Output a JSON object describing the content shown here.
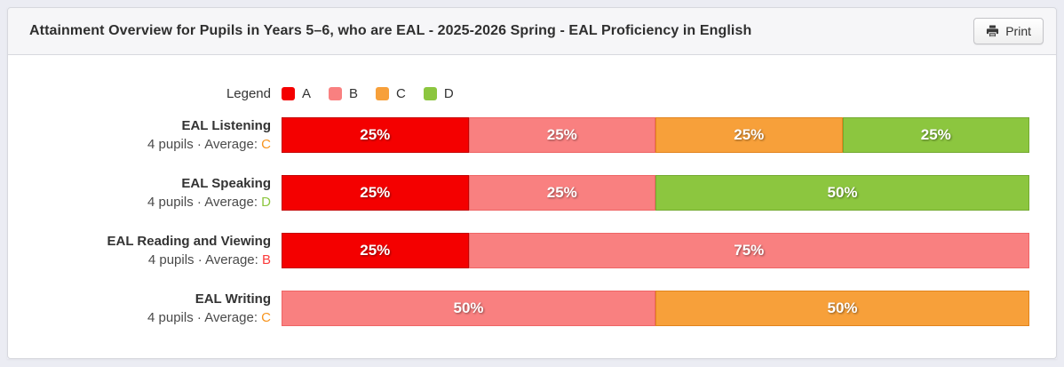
{
  "header": {
    "title": "Attainment Overview for Pupils in Years 5–6, who are EAL - 2025-2026 Spring - EAL Proficiency in English",
    "print_button": "Print"
  },
  "legend": {
    "label": "Legend",
    "items": [
      {
        "grade": "A",
        "color": "#f40000"
      },
      {
        "grade": "B",
        "color": "#f98080"
      },
      {
        "grade": "C",
        "color": "#f7a03a"
      },
      {
        "grade": "D",
        "color": "#8cc63f"
      }
    ]
  },
  "grade_colors": {
    "A": "#f40000",
    "B": "#f98080",
    "C": "#f7a03a",
    "D": "#8cc63f"
  },
  "grade_borders": {
    "A": "#c40202",
    "B": "#ee6565",
    "C": "#e2831c",
    "D": "#74aa31"
  },
  "average_letter_colors": {
    "A": "#f40000",
    "B": "#fb3b3b",
    "C": "#f7941e",
    "D": "#8cc63f"
  },
  "rows": [
    {
      "label": "EAL Listening",
      "meta_prefix": "4 pupils · Average: ",
      "average": "C",
      "segments": [
        {
          "grade": "A",
          "percent": 25,
          "text": "25%"
        },
        {
          "grade": "B",
          "percent": 25,
          "text": "25%"
        },
        {
          "grade": "C",
          "percent": 25,
          "text": "25%"
        },
        {
          "grade": "D",
          "percent": 25,
          "text": "25%"
        }
      ]
    },
    {
      "label": "EAL Speaking",
      "meta_prefix": "4 pupils · Average: ",
      "average": "D",
      "segments": [
        {
          "grade": "A",
          "percent": 25,
          "text": "25%"
        },
        {
          "grade": "B",
          "percent": 25,
          "text": "25%"
        },
        {
          "grade": "D",
          "percent": 50,
          "text": "50%"
        }
      ]
    },
    {
      "label": "EAL Reading and Viewing",
      "meta_prefix": "4 pupils · Average: ",
      "average": "B",
      "segments": [
        {
          "grade": "A",
          "percent": 25,
          "text": "25%"
        },
        {
          "grade": "B",
          "percent": 75,
          "text": "75%"
        }
      ]
    },
    {
      "label": "EAL Writing",
      "meta_prefix": "4 pupils · Average: ",
      "average": "C",
      "segments": [
        {
          "grade": "B",
          "percent": 50,
          "text": "50%"
        },
        {
          "grade": "C",
          "percent": 50,
          "text": "50%"
        }
      ]
    }
  ],
  "chart_data": {
    "type": "bar",
    "orientation": "horizontal-stacked",
    "title": "Attainment Overview for Pupils in Years 5–6, who are EAL - 2025-2026 Spring - EAL Proficiency in English",
    "categories": [
      "EAL Listening",
      "EAL Speaking",
      "EAL Reading and Viewing",
      "EAL Writing"
    ],
    "category_meta": [
      "4 pupils · Average: C",
      "4 pupils · Average: D",
      "4 pupils · Average: B",
      "4 pupils · Average: C"
    ],
    "series": [
      {
        "name": "A",
        "color": "#f40000",
        "values": [
          25,
          25,
          25,
          0
        ]
      },
      {
        "name": "B",
        "color": "#f98080",
        "values": [
          25,
          25,
          75,
          50
        ]
      },
      {
        "name": "C",
        "color": "#f7a03a",
        "values": [
          25,
          0,
          0,
          50
        ]
      },
      {
        "name": "D",
        "color": "#8cc63f",
        "values": [
          25,
          50,
          0,
          0
        ]
      }
    ],
    "unit": "%",
    "xlim": [
      0,
      100
    ],
    "data_labels": true,
    "legend_position": "top",
    "grid": false
  }
}
